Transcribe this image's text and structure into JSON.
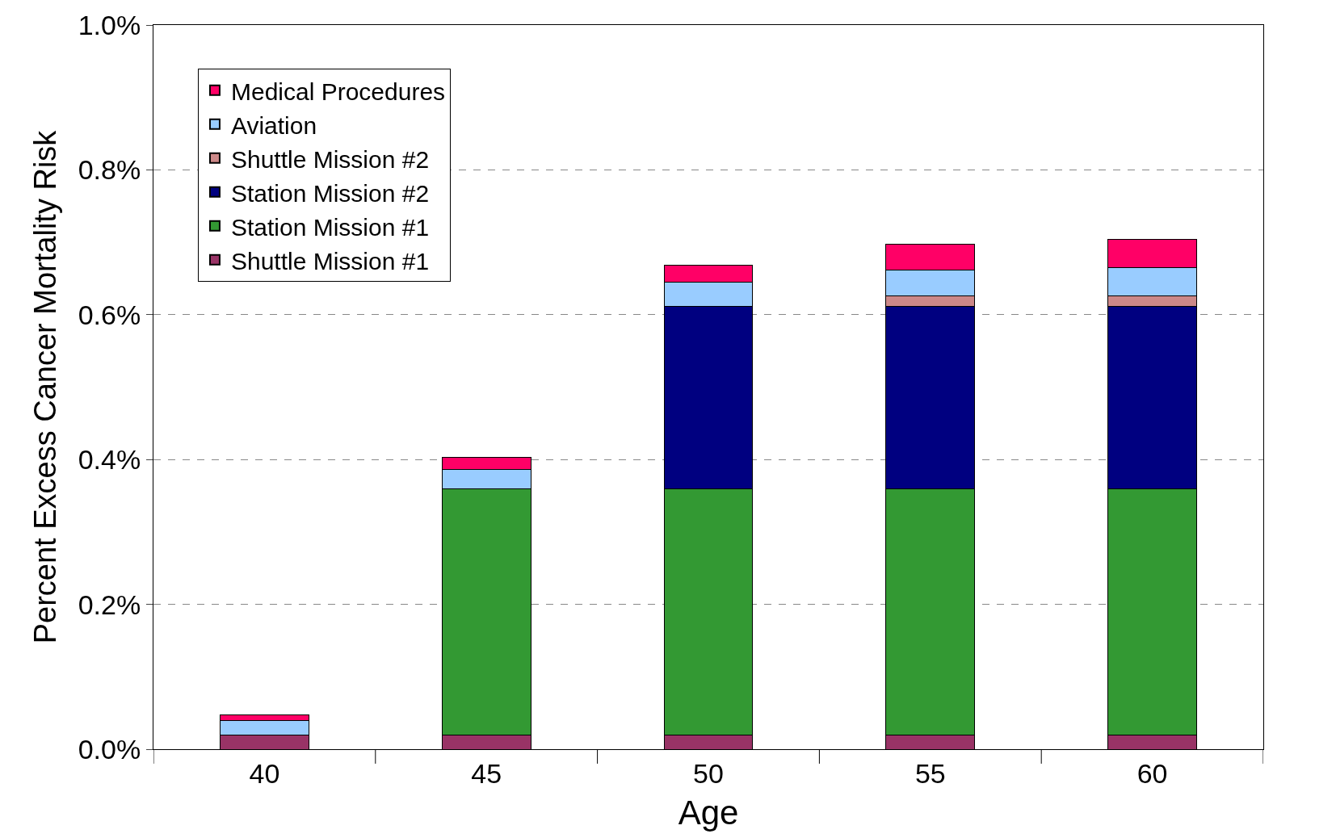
{
  "chart_data": {
    "type": "bar",
    "stacked": true,
    "xlabel": "Age",
    "ylabel": "Percent Excess Cancer Mortality Risk",
    "categories": [
      "40",
      "45",
      "50",
      "55",
      "60"
    ],
    "series": [
      {
        "name": "Shuttle Mission #1",
        "color": "#993366",
        "values": [
          0.02,
          0.02,
          0.02,
          0.02,
          0.02
        ]
      },
      {
        "name": "Station Mission #1",
        "color": "#339933",
        "values": [
          null,
          0.34,
          0.34,
          0.34,
          0.34
        ]
      },
      {
        "name": "Station Mission #2",
        "color": "#000080",
        "values": [
          null,
          null,
          0.252,
          0.252,
          0.252
        ]
      },
      {
        "name": "Shuttle Mission #2",
        "color": "#cc8888",
        "values": [
          null,
          null,
          null,
          0.014,
          0.014
        ]
      },
      {
        "name": "Aviation",
        "color": "#99ccff",
        "values": [
          0.02,
          0.026,
          0.033,
          0.036,
          0.039
        ]
      },
      {
        "name": "Medical Procedures",
        "color": "#ff0066",
        "values": [
          0.007,
          0.017,
          0.023,
          0.035,
          0.039
        ]
      }
    ],
    "ylim": [
      0,
      1.0
    ],
    "yticks": [
      {
        "value": 0,
        "label": "0.0%"
      },
      {
        "value": 0.2,
        "label": "0.2%"
      },
      {
        "value": 0.4,
        "label": "0.4%"
      },
      {
        "value": 0.6,
        "label": "0.6%"
      },
      {
        "value": 0.8,
        "label": "0.8%"
      },
      {
        "value": 1.0,
        "label": "1.0%"
      }
    ],
    "grid": "y",
    "legend": "top left"
  }
}
